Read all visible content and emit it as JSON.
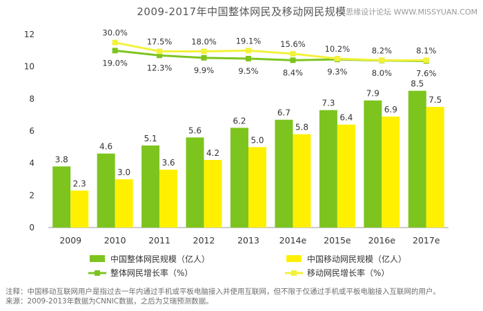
{
  "page": {
    "watermark": "思缘设计论坛 WWW.MISSYUAN.COM",
    "notes": [
      "注释：中国移动互联网用户是指过去一年内通过手机或平板电脑接入并使用互联网，但不限于仅通过手机或平板电脑接入互联网的用户。",
      "来源：2009-2013年数据为CNNIC数据，之后为艾瑞预测数据。"
    ]
  },
  "colors": {
    "total": "#7dc41f",
    "mobile": "#fff000",
    "total_line": "#7dc41f",
    "mobile_line": "#f2f23a",
    "axis": "#999999",
    "text": "#333333"
  },
  "chart_data": {
    "type": "bar",
    "title": "2009-2017年中国整体网民及移动网民规模",
    "categories": [
      "2009",
      "2010",
      "2011",
      "2012",
      "2013",
      "2014e",
      "2015e",
      "2016e",
      "2017e"
    ],
    "ylim": [
      0,
      12
    ],
    "yticks": [
      0,
      2,
      4,
      6,
      8,
      10,
      12
    ],
    "grid": false,
    "legend_position": "bottom",
    "series": [
      {
        "name": "中国整体网民规模（亿人）",
        "kind": "bar",
        "values": [
          3.8,
          4.6,
          5.1,
          5.6,
          6.2,
          6.7,
          7.3,
          7.9,
          8.5
        ]
      },
      {
        "name": "中国移动网民规模（亿人）",
        "kind": "bar",
        "values": [
          2.3,
          3.0,
          3.6,
          4.2,
          5.0,
          5.8,
          6.4,
          6.9,
          7.5
        ]
      }
    ],
    "growth_series": [
      {
        "name": "整体网民增长率（%）",
        "kind": "line",
        "labels": [
          "19.0%",
          "12.3%",
          "9.9%",
          "9.5%",
          "8.4%",
          "9.3%",
          "8.0%",
          "7.6%"
        ],
        "plot_values": [
          11.0,
          10.7,
          10.55,
          10.5,
          10.4,
          10.45,
          10.38,
          10.35
        ]
      },
      {
        "name": "移动网民增长率（%）",
        "kind": "line",
        "labels": [
          "30.0%",
          "17.5%",
          "18.0%",
          "19.1%",
          "15.6%",
          "10.2%",
          "8.2%",
          "8.1%"
        ],
        "plot_values": [
          11.5,
          10.95,
          10.95,
          11.0,
          10.8,
          10.5,
          10.4,
          10.4
        ]
      }
    ]
  }
}
